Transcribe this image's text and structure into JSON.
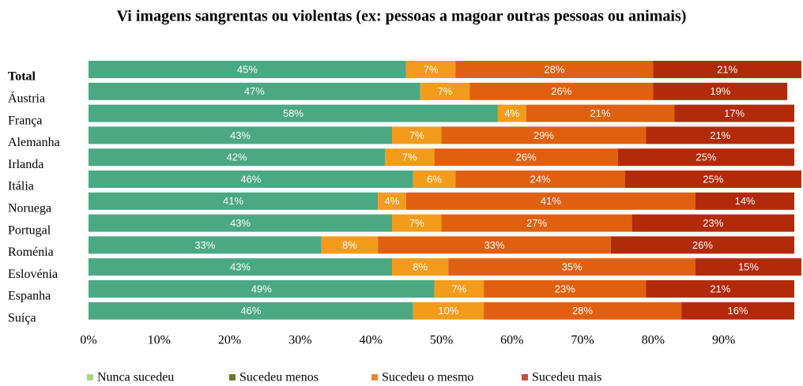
{
  "chart_data": {
    "type": "stacked_barh",
    "title": "Vi imagens sangrentas ou violentas (ex: pessoas a magoar outras pessoas ou animais)",
    "categories": [
      "Total",
      "Áustria",
      "França",
      "Alemanha",
      "Irlanda",
      "Itália",
      "Noruega",
      "Portugal",
      "Roménia",
      "Eslovénia",
      "Espanha",
      "Suíça"
    ],
    "series": [
      {
        "name": "Nunca sucedeu",
        "color": "#4aa882",
        "legend_color": "#a5d58a",
        "values": [
          45,
          47,
          58,
          43,
          42,
          46,
          41,
          43,
          33,
          43,
          49,
          46
        ],
        "value_labels": [
          "45%",
          "47%",
          "58%",
          "43%",
          "42%",
          "46%",
          "41%",
          "43%",
          "33%",
          "43%",
          "49%",
          "46%"
        ]
      },
      {
        "name": "Sucedeu menos",
        "color": "#f39c1c",
        "legend_color": "#6b7a22",
        "values": [
          7,
          7,
          4,
          7,
          7,
          6,
          4,
          7,
          8,
          8,
          7,
          10
        ],
        "value_labels": [
          "7%",
          "7%",
          "4%",
          "7%",
          "7%",
          "6%",
          "4%",
          "7%",
          "8%",
          "8%",
          "7%",
          "10%"
        ]
      },
      {
        "name": "Sucedeu o mesmo",
        "color": "#e06010",
        "legend_color": "#e8873a",
        "values": [
          28,
          26,
          21,
          29,
          26,
          24,
          41,
          27,
          33,
          35,
          23,
          28
        ],
        "value_labels": [
          "28%",
          "26%",
          "21%",
          "29%",
          "26%",
          "24%",
          "41%",
          "27%",
          "33%",
          "35%",
          "23%",
          "28%"
        ]
      },
      {
        "name": "Sucedeu mais",
        "color": "#b22a0a",
        "legend_color": "#c84a40",
        "values": [
          21,
          19,
          17,
          21,
          25,
          25,
          14,
          23,
          26,
          15,
          21,
          16
        ],
        "value_labels": [
          "21%",
          "19%",
          "17%",
          "21%",
          "25%",
          "25%",
          "14%",
          "23%",
          "26%",
          "15%",
          "21%",
          "16%"
        ]
      }
    ],
    "xlim": [
      0,
      100
    ],
    "xticks": [
      {
        "value": 0,
        "label": "0%"
      },
      {
        "value": 10,
        "label": "10%"
      },
      {
        "value": 20,
        "label": "20%"
      },
      {
        "value": 30,
        "label": "30%"
      },
      {
        "value": 40,
        "label": "40%"
      },
      {
        "value": 50,
        "label": "50%"
      },
      {
        "value": 60,
        "label": "60%"
      },
      {
        "value": 70,
        "label": "70%"
      },
      {
        "value": 80,
        "label": "80%"
      },
      {
        "value": 90,
        "label": "90%"
      }
    ],
    "legend": "bottom"
  }
}
